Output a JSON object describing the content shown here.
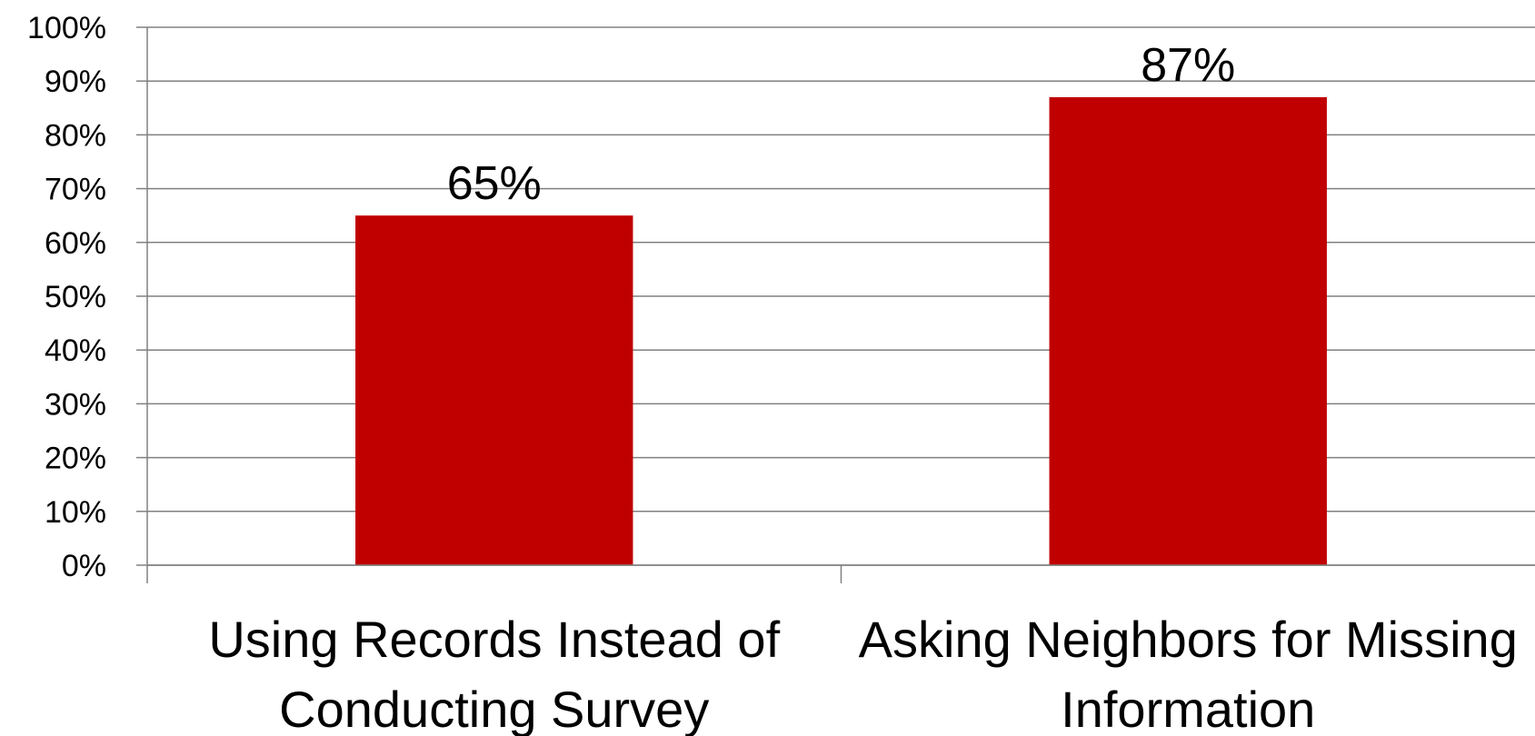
{
  "chart_data": {
    "type": "bar",
    "categories": [
      [
        "Using Records Instead of",
        "Conducting Survey"
      ],
      [
        "Asking Neighbors for Missing",
        "Information"
      ]
    ],
    "values": [
      65,
      87
    ],
    "data_labels": [
      "65%",
      "87%"
    ],
    "ylim": [
      0,
      100
    ],
    "yticks": [
      0,
      10,
      20,
      30,
      40,
      50,
      60,
      70,
      80,
      90,
      100
    ],
    "ytick_labels": [
      "0%",
      "10%",
      "20%",
      "30%",
      "40%",
      "50%",
      "60%",
      "70%",
      "80%",
      "90%",
      "100%"
    ],
    "grid": true,
    "legend": "none",
    "colors": {
      "bar": "#C00000",
      "grid": "#808080",
      "axis": "#808080"
    }
  }
}
